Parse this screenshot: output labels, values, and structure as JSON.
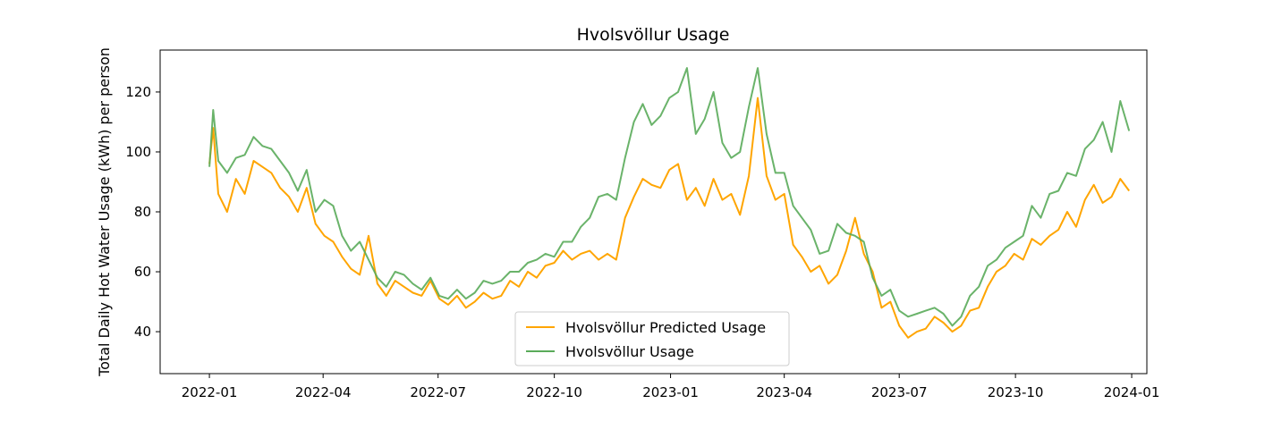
{
  "chart_data": {
    "type": "line",
    "title": "Hvolsvöllur Usage",
    "xlabel": "",
    "ylabel": "Total Daily Hot Water Usage (kWh) per person",
    "xlim": [
      "2021-11-23",
      "2024-01-13"
    ],
    "ylim": [
      26,
      134
    ],
    "x_ticks": [
      "2022-01",
      "2022-04",
      "2022-07",
      "2022-10",
      "2023-01",
      "2023-04",
      "2023-07",
      "2023-10",
      "2024-01"
    ],
    "x_tick_dates": [
      "2022-01-01",
      "2022-04-01",
      "2022-07-01",
      "2022-10-01",
      "2023-01-01",
      "2023-04-01",
      "2023-07-01",
      "2023-10-01",
      "2024-01-01"
    ],
    "y_ticks": [
      40,
      60,
      80,
      100,
      120
    ],
    "grid": false,
    "legend_position": "bottom-center",
    "x": [
      "2022-01-01",
      "2022-01-04",
      "2022-01-08",
      "2022-01-15",
      "2022-01-22",
      "2022-01-29",
      "2022-02-05",
      "2022-02-12",
      "2022-02-19",
      "2022-02-26",
      "2022-03-05",
      "2022-03-12",
      "2022-03-19",
      "2022-03-26",
      "2022-04-02",
      "2022-04-09",
      "2022-04-16",
      "2022-04-23",
      "2022-04-30",
      "2022-05-07",
      "2022-05-14",
      "2022-05-21",
      "2022-05-28",
      "2022-06-04",
      "2022-06-11",
      "2022-06-18",
      "2022-06-25",
      "2022-07-02",
      "2022-07-09",
      "2022-07-16",
      "2022-07-23",
      "2022-07-30",
      "2022-08-06",
      "2022-08-13",
      "2022-08-20",
      "2022-08-27",
      "2022-09-03",
      "2022-09-10",
      "2022-09-17",
      "2022-09-24",
      "2022-10-01",
      "2022-10-08",
      "2022-10-15",
      "2022-10-22",
      "2022-10-29",
      "2022-11-05",
      "2022-11-12",
      "2022-11-19",
      "2022-11-26",
      "2022-12-03",
      "2022-12-10",
      "2022-12-17",
      "2022-12-24",
      "2022-12-31",
      "2023-01-07",
      "2023-01-14",
      "2023-01-21",
      "2023-01-28",
      "2023-02-04",
      "2023-02-11",
      "2023-02-18",
      "2023-02-25",
      "2023-03-04",
      "2023-03-11",
      "2023-03-18",
      "2023-03-25",
      "2023-04-01",
      "2023-04-08",
      "2023-04-15",
      "2023-04-22",
      "2023-04-29",
      "2023-05-06",
      "2023-05-13",
      "2023-05-20",
      "2023-05-27",
      "2023-06-03",
      "2023-06-10",
      "2023-06-17",
      "2023-06-24",
      "2023-07-01",
      "2023-07-08",
      "2023-07-15",
      "2023-07-22",
      "2023-07-29",
      "2023-08-05",
      "2023-08-12",
      "2023-08-19",
      "2023-08-26",
      "2023-09-02",
      "2023-09-09",
      "2023-09-16",
      "2023-09-23",
      "2023-09-30",
      "2023-10-07",
      "2023-10-14",
      "2023-10-21",
      "2023-10-28",
      "2023-11-04",
      "2023-11-11",
      "2023-11-18",
      "2023-11-25",
      "2023-12-02",
      "2023-12-09",
      "2023-12-16",
      "2023-12-23",
      "2023-12-30"
    ],
    "series": [
      {
        "name": "Hvolsvöllur Predicted Usage",
        "color": "#ffa500",
        "values": [
          96,
          108,
          86,
          80,
          91,
          86,
          97,
          95,
          93,
          88,
          85,
          80,
          88,
          76,
          72,
          70,
          65,
          61,
          59,
          72,
          56,
          52,
          57,
          55,
          53,
          52,
          57,
          51,
          49,
          52,
          48,
          50,
          53,
          51,
          52,
          57,
          55,
          60,
          58,
          62,
          63,
          67,
          64,
          66,
          67,
          64,
          66,
          64,
          78,
          85,
          91,
          89,
          88,
          94,
          96,
          84,
          88,
          82,
          91,
          84,
          86,
          79,
          92,
          118,
          92,
          84,
          86,
          69,
          65,
          60,
          62,
          56,
          59,
          67,
          78,
          66,
          60,
          48,
          50,
          42,
          38,
          40,
          41,
          45,
          43,
          40,
          42,
          47,
          48,
          55,
          60,
          62,
          66,
          64,
          71,
          69,
          72,
          74,
          80,
          75,
          84,
          89,
          83,
          85,
          91,
          87
        ]
      },
      {
        "name": "Hvolsvöllur Usage",
        "color": "#5aab5a",
        "values": [
          95,
          114,
          97,
          93,
          98,
          99,
          105,
          102,
          101,
          97,
          93,
          87,
          94,
          80,
          84,
          82,
          72,
          67,
          70,
          64,
          58,
          55,
          60,
          59,
          56,
          54,
          58,
          52,
          51,
          54,
          51,
          53,
          57,
          56,
          57,
          60,
          60,
          63,
          64,
          66,
          65,
          70,
          70,
          75,
          78,
          85,
          86,
          84,
          98,
          110,
          116,
          109,
          112,
          118,
          120,
          128,
          106,
          111,
          120,
          103,
          98,
          100,
          115,
          128,
          106,
          93,
          93,
          82,
          78,
          74,
          66,
          67,
          76,
          73,
          72,
          70,
          58,
          52,
          54,
          47,
          45,
          46,
          47,
          48,
          46,
          42,
          45,
          52,
          55,
          62,
          64,
          68,
          70,
          72,
          82,
          78,
          86,
          87,
          93,
          92,
          101,
          104,
          110,
          100,
          117,
          107
        ]
      }
    ]
  }
}
